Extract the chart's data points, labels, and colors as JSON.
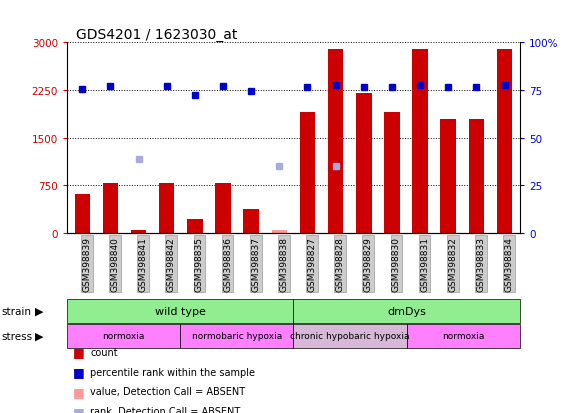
{
  "title": "GDS4201 / 1623030_at",
  "samples": [
    "GSM398839",
    "GSM398840",
    "GSM398841",
    "GSM398842",
    "GSM398835",
    "GSM398836",
    "GSM398837",
    "GSM398838",
    "GSM398827",
    "GSM398828",
    "GSM398829",
    "GSM398830",
    "GSM398831",
    "GSM398832",
    "GSM398833",
    "GSM398834"
  ],
  "count_values": [
    620,
    780,
    50,
    780,
    220,
    780,
    380,
    50,
    1900,
    2900,
    2200,
    1900,
    2900,
    1800,
    1800,
    2900
  ],
  "count_absent": [
    false,
    false,
    false,
    false,
    false,
    false,
    false,
    true,
    false,
    false,
    false,
    false,
    false,
    false,
    false,
    false
  ],
  "rank_values": [
    2260,
    2310,
    null,
    2310,
    2180,
    2310,
    2240,
    null,
    2300,
    2330,
    2300,
    2300,
    2330,
    2300,
    2300,
    2330
  ],
  "rank_absent": [
    false,
    false,
    true,
    false,
    false,
    false,
    false,
    true,
    false,
    false,
    false,
    false,
    false,
    false,
    false,
    false
  ],
  "rank_absent_values": [
    null,
    null,
    1170,
    null,
    null,
    null,
    null,
    1050,
    null,
    1050,
    null,
    null,
    null,
    null,
    null,
    null
  ],
  "ylim_left": [
    0,
    3000
  ],
  "ylim_right": [
    0,
    100
  ],
  "yticks_left": [
    0,
    750,
    1500,
    2250,
    3000
  ],
  "yticks_right": [
    0,
    25,
    50,
    75,
    100
  ],
  "strain_groups": [
    {
      "label": "wild type",
      "start": 0,
      "end": 8,
      "color": "#90EE90"
    },
    {
      "label": "dmDys",
      "start": 8,
      "end": 16,
      "color": "#90EE90"
    }
  ],
  "stress_groups": [
    {
      "label": "normoxia",
      "start": 0,
      "end": 4,
      "color": "#FF80FF"
    },
    {
      "label": "normobaric hypoxia",
      "start": 4,
      "end": 8,
      "color": "#FF80FF"
    },
    {
      "label": "chronic hypobaric hypoxia",
      "start": 8,
      "end": 12,
      "color": "#D8B8D8"
    },
    {
      "label": "normoxia",
      "start": 12,
      "end": 16,
      "color": "#FF80FF"
    }
  ],
  "bar_color": "#CC0000",
  "bar_absent_color": "#FF9999",
  "rank_color": "#0000CC",
  "rank_absent_color": "#AAAADD",
  "background_color": "#ffffff",
  "plot_bg_color": "#ffffff",
  "tick_label_color_left": "#CC0000",
  "tick_label_color_right": "#0000CC",
  "xticklabel_bg": "#cccccc",
  "xticklabel_edge": "#888888"
}
